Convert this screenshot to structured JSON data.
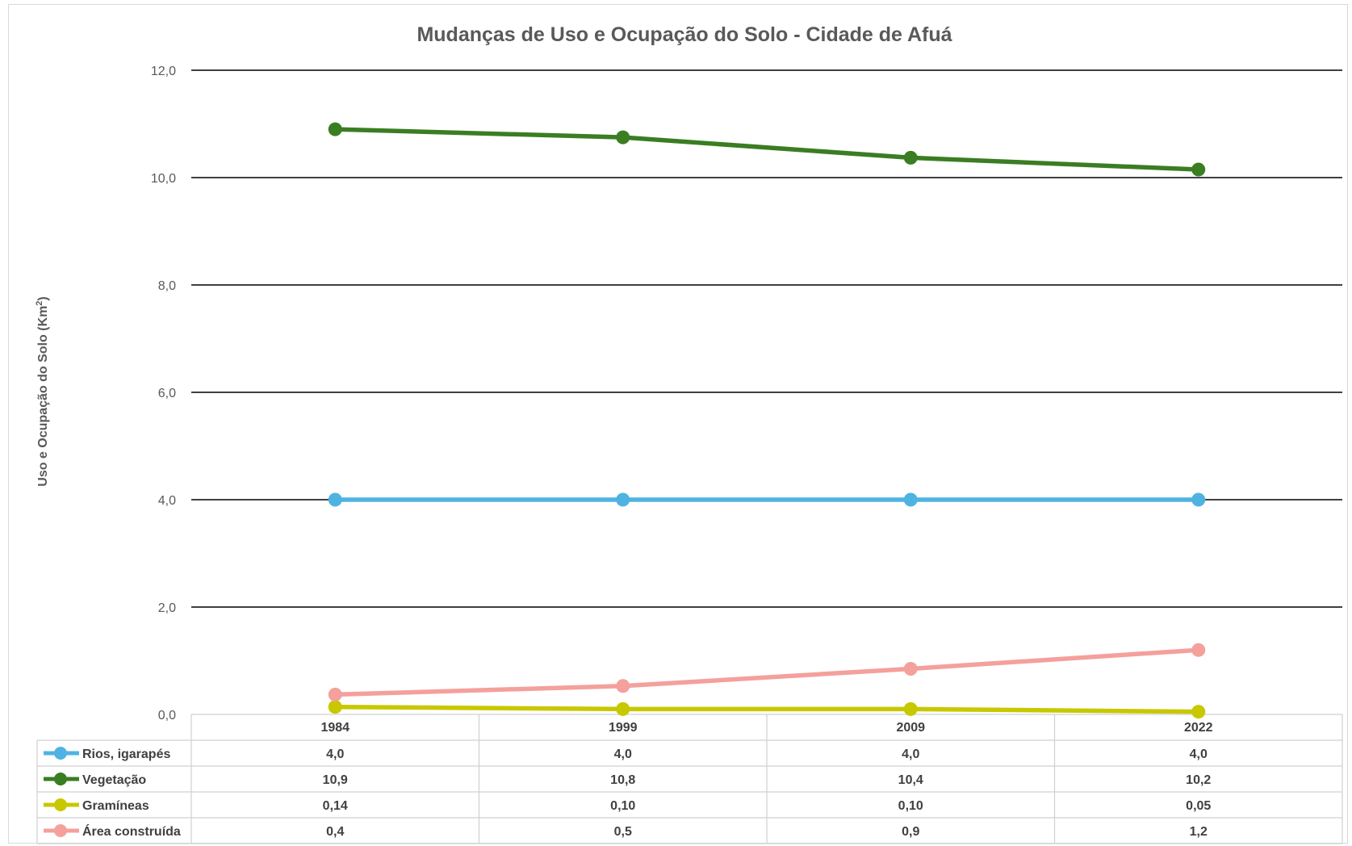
{
  "chart_data": {
    "type": "line",
    "title": "Mudanças de Uso e Ocupação do Solo - Cidade de Afuá",
    "ylabel": "Uso e Ocupação do Solo (Km²)",
    "xlabel": "",
    "ylim": [
      0,
      12
    ],
    "yticks": [
      "0,0",
      "2,0",
      "4,0",
      "6,0",
      "8,0",
      "10,0",
      "12,0"
    ],
    "categories": [
      "1984",
      "1999",
      "2009",
      "2022"
    ],
    "grid": true,
    "legend": "data-table-bottom",
    "series": [
      {
        "name": "Rios, igarapés",
        "color": "#4fb3e2",
        "values": [
          4.0,
          4.0,
          4.0,
          4.0
        ],
        "labels": [
          "4,0",
          "4,0",
          "4,0",
          "4,0"
        ]
      },
      {
        "name": "Vegetação",
        "color": "#3a7d22",
        "values": [
          10.9,
          10.75,
          10.37,
          10.15
        ],
        "labels": [
          "10,9",
          "10,8",
          "10,4",
          "10,2"
        ]
      },
      {
        "name": "Gramíneas",
        "color": "#c8c800",
        "values": [
          0.14,
          0.1,
          0.1,
          0.05
        ],
        "labels": [
          "0,14",
          "0,10",
          "0,10",
          "0,05"
        ]
      },
      {
        "name": "Área construída",
        "color": "#f4a09c",
        "values": [
          0.37,
          0.53,
          0.85,
          1.2
        ],
        "labels": [
          "0,4",
          "0,5",
          "0,9",
          "1,2"
        ]
      }
    ]
  }
}
